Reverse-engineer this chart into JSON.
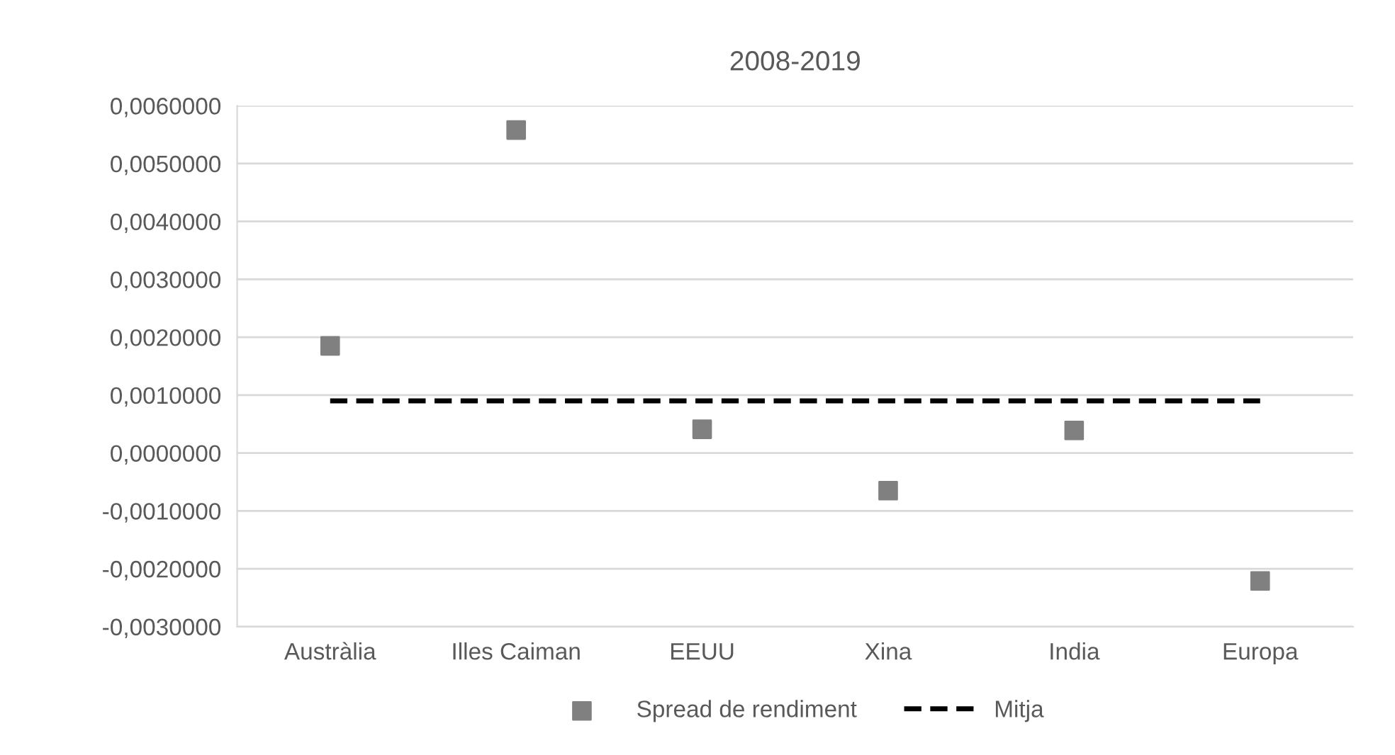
{
  "chart_data": {
    "type": "scatter",
    "title": "2008-2019",
    "categories": [
      "Austràlia",
      "Illes Caiman",
      "EEUU",
      "Xina",
      "India",
      "Europa"
    ],
    "series": [
      {
        "name": "Spread de rendiment",
        "color": "#808080",
        "marker": "square",
        "values": [
          0.00185,
          0.00558,
          0.00041,
          -0.00065,
          0.00039,
          -0.00221
        ]
      },
      {
        "name": "Mitja",
        "type": "line",
        "color": "#000000",
        "line_style": "dashed",
        "marker": "none",
        "values": [
          0.0009,
          0.0009,
          0.0009,
          0.0009,
          0.0009,
          0.0009
        ]
      }
    ],
    "ylim": [
      -0.003,
      0.006
    ],
    "yticks": [
      {
        "value": -0.003,
        "label": "-0,0030000"
      },
      {
        "value": -0.002,
        "label": "-0,0020000"
      },
      {
        "value": -0.001,
        "label": "-0,0010000"
      },
      {
        "value": 0,
        "label": "0,0000000"
      },
      {
        "value": 0.001,
        "label": "0,0010000"
      },
      {
        "value": 0.002,
        "label": "0,0020000"
      },
      {
        "value": 0.003,
        "label": "0,0030000"
      },
      {
        "value": 0.004,
        "label": "0,0040000"
      },
      {
        "value": 0.005,
        "label": "0,0050000"
      },
      {
        "value": 0.006,
        "label": "0,0060000"
      }
    ],
    "grid": "y",
    "legend": "bottom"
  }
}
